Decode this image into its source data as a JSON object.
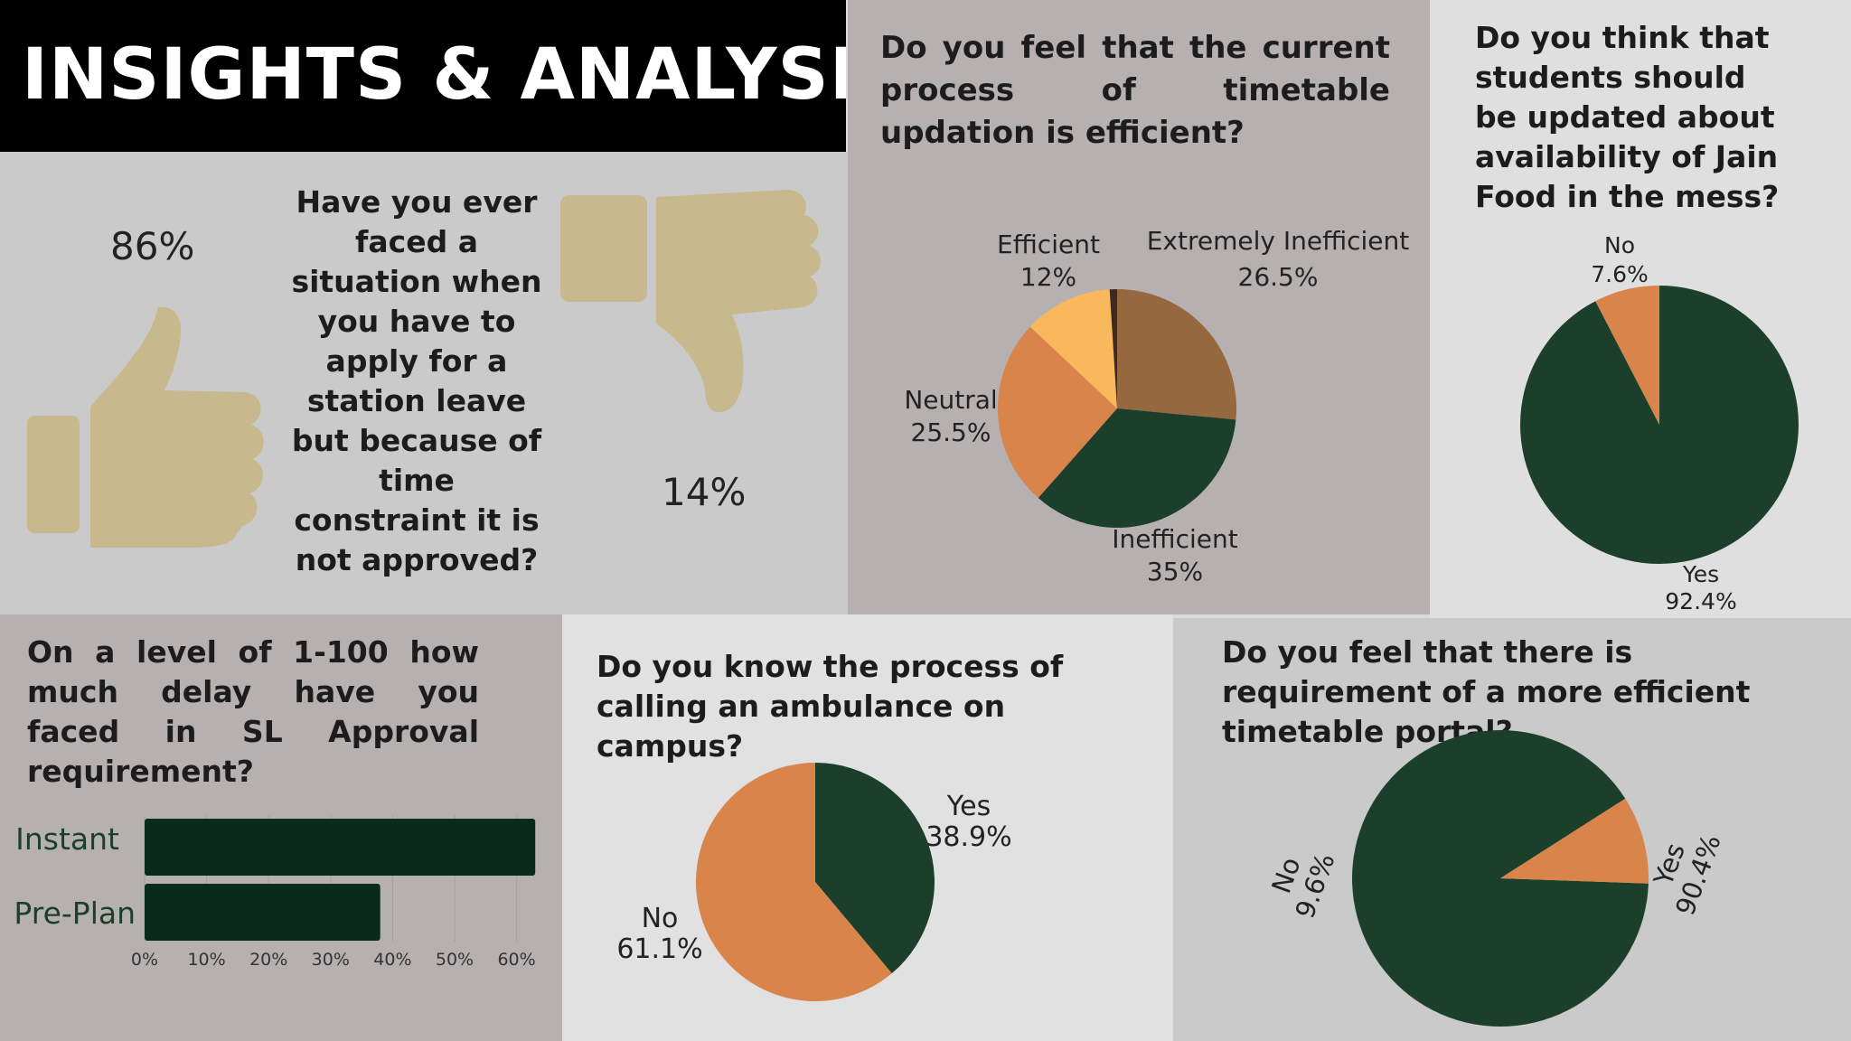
{
  "title": "INSIGHTS & ANALYSIS",
  "colors": {
    "dark_green": "#1b3f2b",
    "orange": "#d8844a",
    "brown": "#95683f",
    "yellow": "#f9b85b",
    "thumb": "#c7b88d"
  },
  "station_leave": {
    "question": "Have you ever faced a situation when you have to apply for a station leave but because of time constraint it is not approved?",
    "yes_percent": "86%",
    "no_percent": "14%"
  },
  "timetable": {
    "question": "Do you feel that the current process of timetable updation is efficient?",
    "slices": [
      {
        "name": "Extremely Inefficient",
        "label": "26.5%",
        "value": 26.5,
        "color": "#95683f"
      },
      {
        "name": "Inefficient",
        "label": "35%",
        "value": 35,
        "color": "#1b3f2b"
      },
      {
        "name": "Neutral",
        "label": "25.5%",
        "value": 25.5,
        "color": "#d8844a"
      },
      {
        "name": "Efficient",
        "label": "12%",
        "value": 12,
        "color": "#f9b85b"
      },
      {
        "name": "",
        "label": "",
        "value": 1,
        "color": "#3c2a1c"
      }
    ]
  },
  "jain": {
    "question": "Do you think that students should be updated about availability of Jain Food in the mess?",
    "slices": [
      {
        "name": "Yes",
        "label": "92.4%",
        "value": 92.4,
        "color": "#1b3f2b"
      },
      {
        "name": "No",
        "label": "7.6%",
        "value": 7.6,
        "color": "#d8844a"
      }
    ]
  },
  "delay": {
    "question": "On a level of 1-100 how much delay have you faced in SL Approval requirement?",
    "bars": [
      {
        "category": "Instant",
        "value": 63
      },
      {
        "category": "Pre-Plan",
        "value": 38
      }
    ],
    "ticks": [
      "0%",
      "10%",
      "20%",
      "30%",
      "40%",
      "50%",
      "60%"
    ]
  },
  "ambulance": {
    "question": "Do you know the process of calling an ambulance on campus?",
    "slices": [
      {
        "name": "Yes",
        "label": "38.9%",
        "value": 38.9,
        "color": "#1b3f2b"
      },
      {
        "name": "No",
        "label": "61.1%",
        "value": 61.1,
        "color": "#d8844a"
      }
    ]
  },
  "portal": {
    "question": "Do you feel that there is requirement of a more efficient timetable portal?",
    "slices": [
      {
        "name": "Yes",
        "label": "90.4%",
        "value": 90.4,
        "color": "#1b3f2b"
      },
      {
        "name": "No",
        "label": "9.6%",
        "value": 9.6,
        "color": "#d8844a"
      }
    ]
  },
  "chart_data": [
    {
      "type": "pie",
      "title": "Do you feel that the current process of timetable updation is efficient?",
      "categories": [
        "Extremely Inefficient",
        "Inefficient",
        "Neutral",
        "Efficient"
      ],
      "values": [
        26.5,
        35,
        25.5,
        12
      ]
    },
    {
      "type": "pie",
      "title": "Do you think that students should be updated about availability of Jain Food in the mess?",
      "categories": [
        "Yes",
        "No"
      ],
      "values": [
        92.4,
        7.6
      ]
    },
    {
      "type": "bar",
      "orientation": "horizontal",
      "title": "On a level of 1-100 how much delay have you faced in SL Approval requirement?",
      "categories": [
        "Instant",
        "Pre-Plan"
      ],
      "values": [
        63,
        38
      ],
      "xlim": [
        0,
        60
      ]
    },
    {
      "type": "pie",
      "title": "Do you know the process of calling an ambulance on campus?",
      "categories": [
        "Yes",
        "No"
      ],
      "values": [
        38.9,
        61.1
      ]
    },
    {
      "type": "pie",
      "title": "Do you feel that there is requirement of a more efficient timetable portal?",
      "categories": [
        "Yes",
        "No"
      ],
      "values": [
        90.4,
        9.6
      ]
    }
  ]
}
